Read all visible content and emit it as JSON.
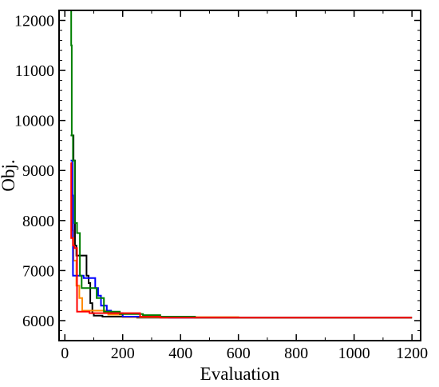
{
  "chart_data": {
    "type": "line",
    "title": "",
    "xlabel": "Evaluation",
    "ylabel": "Obj.",
    "xlim": [
      -20,
      1230
    ],
    "ylim": [
      5600,
      12200
    ],
    "xticks": [
      0,
      200,
      400,
      600,
      800,
      1000,
      1200
    ],
    "yticks": [
      6000,
      7000,
      8000,
      9000,
      10000,
      11000,
      12000
    ],
    "xtick_labels": [
      "0",
      "200",
      "400",
      "600",
      "800",
      "1000",
      "1200"
    ],
    "ytick_labels": [
      "6000",
      "7000",
      "8000",
      "9000",
      "10000",
      "11000",
      "12000"
    ],
    "grid": false,
    "legend": "none",
    "series": [
      {
        "color": "#000000",
        "points": [
          [
            20,
            9700
          ],
          [
            25,
            9700
          ],
          [
            25,
            9700
          ],
          [
            30,
            9700
          ],
          [
            30,
            9200
          ],
          [
            35,
            9200
          ],
          [
            35,
            7500
          ],
          [
            40,
            7500
          ],
          [
            40,
            7300
          ],
          [
            75,
            7300
          ],
          [
            75,
            6900
          ],
          [
            82,
            6900
          ],
          [
            82,
            6750
          ],
          [
            88,
            6750
          ],
          [
            88,
            6350
          ],
          [
            95,
            6350
          ],
          [
            95,
            6150
          ],
          [
            100,
            6150
          ],
          [
            100,
            6100
          ],
          [
            130,
            6100
          ],
          [
            130,
            6080
          ],
          [
            250,
            6080
          ],
          [
            250,
            6060
          ],
          [
            1200,
            6060
          ]
        ]
      },
      {
        "color": "#ff8c00",
        "points": [
          [
            20,
            9000
          ],
          [
            24,
            9000
          ],
          [
            24,
            7800
          ],
          [
            30,
            7800
          ],
          [
            30,
            7200
          ],
          [
            40,
            7200
          ],
          [
            40,
            6700
          ],
          [
            50,
            6700
          ],
          [
            50,
            6450
          ],
          [
            60,
            6450
          ],
          [
            60,
            6200
          ],
          [
            150,
            6200
          ],
          [
            150,
            6120
          ],
          [
            200,
            6120
          ],
          [
            200,
            6070
          ],
          [
            600,
            6070
          ],
          [
            600,
            6060
          ],
          [
            1200,
            6060
          ]
        ]
      },
      {
        "color": "#0000ff",
        "points": [
          [
            20,
            9200
          ],
          [
            26,
            9200
          ],
          [
            26,
            8500
          ],
          [
            28,
            8500
          ],
          [
            28,
            6900
          ],
          [
            65,
            6900
          ],
          [
            65,
            6850
          ],
          [
            105,
            6850
          ],
          [
            105,
            6650
          ],
          [
            115,
            6650
          ],
          [
            115,
            6500
          ],
          [
            125,
            6500
          ],
          [
            125,
            6300
          ],
          [
            145,
            6300
          ],
          [
            145,
            6200
          ],
          [
            160,
            6200
          ],
          [
            160,
            6150
          ],
          [
            200,
            6150
          ],
          [
            200,
            6080
          ],
          [
            360,
            6080
          ],
          [
            360,
            6060
          ],
          [
            1200,
            6060
          ]
        ]
      },
      {
        "color": "#008000",
        "points": [
          [
            20,
            12200
          ],
          [
            22,
            12200
          ],
          [
            22,
            11500
          ],
          [
            24,
            11500
          ],
          [
            24,
            9700
          ],
          [
            28,
            9700
          ],
          [
            28,
            9200
          ],
          [
            34,
            9200
          ],
          [
            34,
            7950
          ],
          [
            42,
            7950
          ],
          [
            42,
            7750
          ],
          [
            52,
            7750
          ],
          [
            52,
            6900
          ],
          [
            58,
            6900
          ],
          [
            58,
            6650
          ],
          [
            110,
            6650
          ],
          [
            110,
            6450
          ],
          [
            135,
            6450
          ],
          [
            135,
            6180
          ],
          [
            190,
            6180
          ],
          [
            190,
            6130
          ],
          [
            270,
            6130
          ],
          [
            270,
            6110
          ],
          [
            330,
            6110
          ],
          [
            330,
            6080
          ],
          [
            450,
            6080
          ],
          [
            450,
            6060
          ],
          [
            1200,
            6060
          ]
        ]
      },
      {
        "color": "#ff0000",
        "points": [
          [
            20,
            9150
          ],
          [
            22,
            9150
          ],
          [
            22,
            7650
          ],
          [
            28,
            7650
          ],
          [
            28,
            7500
          ],
          [
            33,
            7500
          ],
          [
            33,
            7450
          ],
          [
            42,
            7450
          ],
          [
            42,
            6180
          ],
          [
            85,
            6180
          ],
          [
            85,
            6150
          ],
          [
            260,
            6150
          ],
          [
            260,
            6080
          ],
          [
            330,
            6080
          ],
          [
            330,
            6060
          ],
          [
            1200,
            6060
          ]
        ]
      }
    ]
  }
}
